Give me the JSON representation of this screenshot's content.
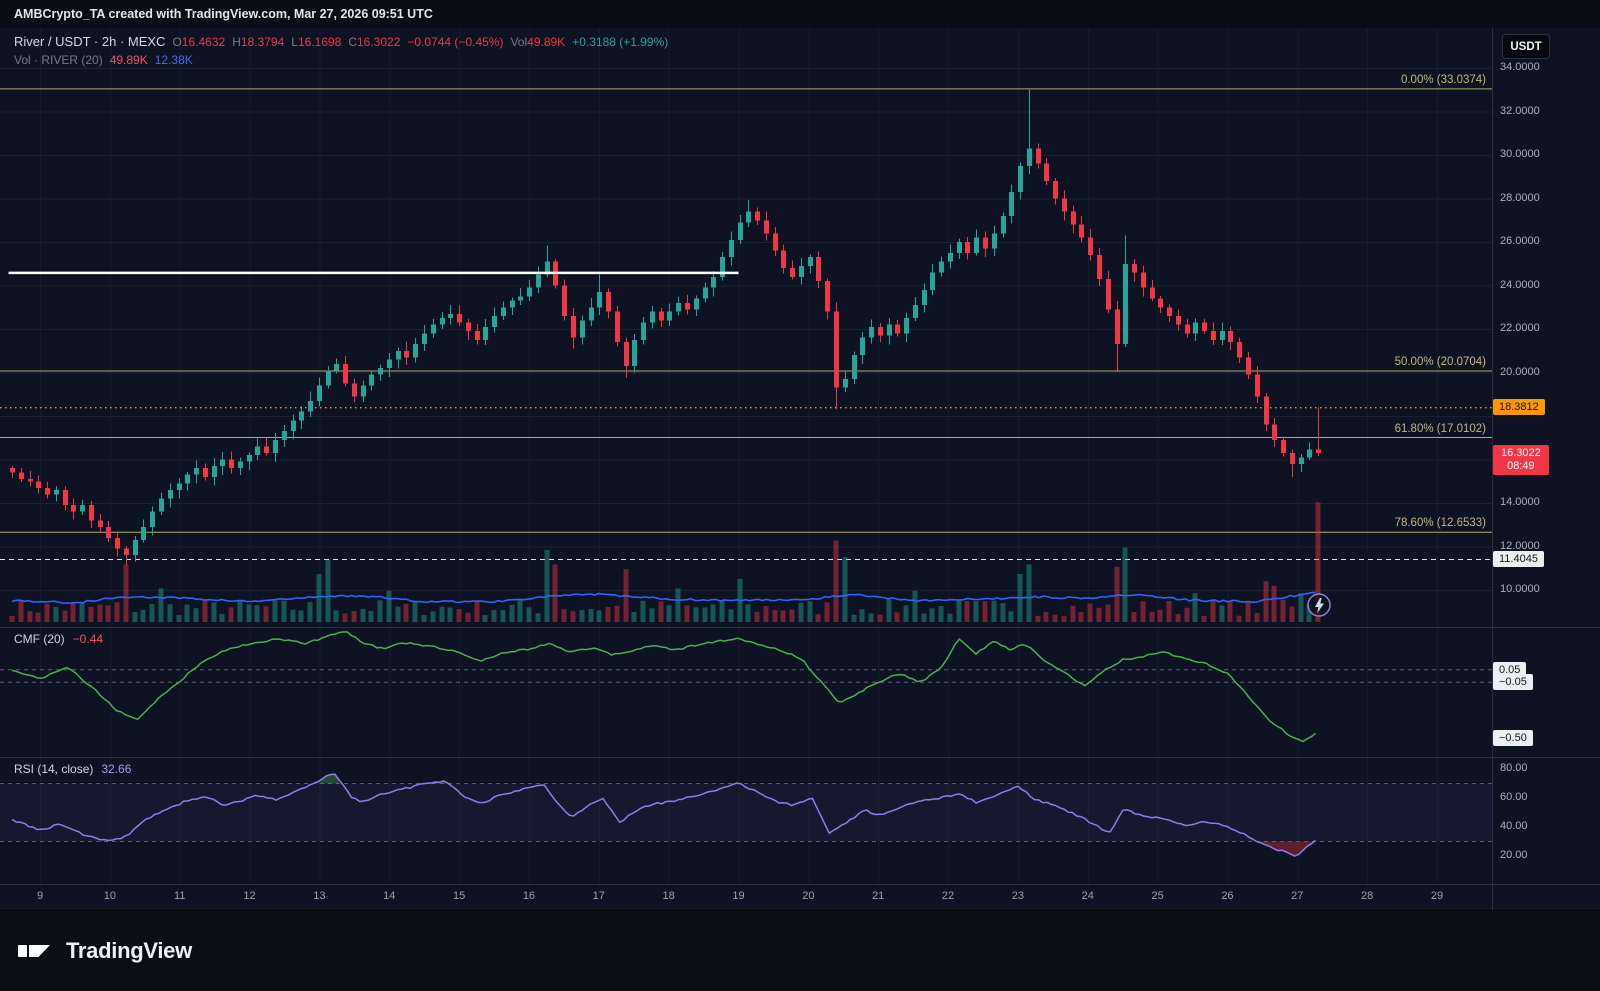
{
  "caption": "AMBCrypto_TA created with TradingView.com, Mar 27, 2026 09:51 UTC",
  "header": {
    "symbol": "River / USDT · 2h · MEXC",
    "o_label": "O",
    "o": "16.4632",
    "h_label": "H",
    "h": "18.3794",
    "l_label": "L",
    "l": "16.1698",
    "c_label": "C",
    "c": "16.3022",
    "change": "−0.0744 (−0.45%)",
    "vol_label": "Vol",
    "vol": "49.89K",
    "vol_change": "+0.3188 (+1.99%)",
    "row2_label": "Vol · RIVER (20)",
    "row2_v1": "49.89K",
    "row2_v2": "12.38K",
    "currency": "USDT"
  },
  "price_labels": {
    "orange": "18.3812",
    "current_price": "16.3022",
    "countdown": "08:49",
    "dashed": "11.4045"
  },
  "footer": {
    "brand": "TradingView"
  },
  "colors": {
    "up": "#26a69a",
    "down": "#f23645",
    "fib": "#b9a96e",
    "orange": "#ff9800",
    "white_line": "#ffffff",
    "vol_ma": "#2f62ff",
    "cmf": "#4caf50",
    "rsi": "#8f7ee8"
  },
  "chart_data": {
    "type": "candlestick",
    "title": "River / USDT · 2h · MEXC",
    "x_axis_days": [
      "9",
      "10",
      "11",
      "12",
      "13",
      "14",
      "15",
      "16",
      "17",
      "18",
      "19",
      "20",
      "21",
      "22",
      "23",
      "24",
      "25",
      "26",
      "27",
      "28",
      "29"
    ],
    "price_axis_ticks": [
      {
        "label": "34.0000",
        "p": 34
      },
      {
        "label": "32.0000",
        "p": 32
      },
      {
        "label": "30.0000",
        "p": 30
      },
      {
        "label": "28.0000",
        "p": 28
      },
      {
        "label": "26.0000",
        "p": 26
      },
      {
        "label": "24.0000",
        "p": 24
      },
      {
        "label": "22.0000",
        "p": 22
      },
      {
        "label": "20.0000",
        "p": 20
      },
      {
        "label": "14.0000",
        "p": 14
      },
      {
        "label": "12.0000",
        "p": 12
      },
      {
        "label": "10.0000",
        "p": 10
      }
    ],
    "fib_levels": [
      {
        "label": "0.00% (33.0374)",
        "price": 33.0374
      },
      {
        "label": "50.00% (20.0704)",
        "price": 20.0704
      },
      {
        "label": "61.80% (17.0102)",
        "price": 17.0102
      },
      {
        "label": "78.60% (12.6533)",
        "price": 12.6533
      }
    ],
    "level_lines": {
      "white_solid": {
        "price": 24.58,
        "start_day": 8.55,
        "end_day": 19.0
      },
      "orange_dotted": 18.3812,
      "white_dashed": 11.4045,
      "current_price": 16.3022
    },
    "candles": {
      "interval": "2h",
      "start_day": 8.6,
      "end_day": 27.3,
      "first_open": 15.6,
      "closes": [
        15.4,
        15.1,
        15.0,
        14.7,
        14.4,
        14.6,
        13.9,
        13.6,
        13.9,
        13.2,
        12.9,
        12.4,
        11.9,
        11.6,
        12.3,
        12.9,
        13.6,
        14.2,
        14.6,
        14.9,
        15.3,
        15.6,
        15.2,
        15.7,
        16.0,
        15.6,
        15.9,
        16.2,
        16.6,
        16.3,
        16.9,
        17.3,
        17.8,
        18.2,
        18.7,
        19.4,
        20.1,
        20.4,
        19.5,
        18.9,
        19.4,
        19.9,
        20.2,
        20.6,
        21.0,
        20.7,
        21.3,
        21.8,
        22.2,
        22.5,
        22.7,
        22.3,
        21.9,
        21.5,
        22.1,
        22.6,
        23.0,
        23.3,
        23.5,
        23.9,
        24.5,
        25.1,
        24.0,
        22.6,
        21.6,
        22.4,
        23.0,
        23.7,
        22.8,
        21.4,
        20.3,
        21.5,
        22.3,
        22.8,
        22.4,
        22.8,
        23.2,
        22.9,
        23.4,
        23.9,
        24.4,
        25.3,
        26.1,
        26.9,
        27.4,
        27.0,
        26.4,
        25.6,
        24.8,
        24.4,
        24.9,
        25.3,
        24.2,
        22.8,
        19.3,
        19.7,
        20.8,
        21.6,
        22.1,
        21.7,
        22.2,
        21.8,
        22.5,
        23.1,
        23.8,
        24.6,
        25.1,
        25.5,
        26.0,
        25.5,
        26.2,
        25.7,
        26.4,
        27.2,
        28.3,
        29.5,
        30.3,
        29.6,
        28.8,
        28.0,
        27.4,
        26.8,
        26.2,
        25.4,
        24.3,
        22.9,
        21.3,
        25.0,
        24.6,
        23.9,
        23.4,
        23.0,
        22.6,
        22.2,
        21.8,
        22.3,
        21.9,
        21.5,
        21.9,
        21.4,
        20.7,
        19.9,
        18.9,
        17.6,
        16.9,
        16.3,
        15.8,
        16.1,
        16.46,
        16.3022
      ],
      "overrides": {
        "13": {
          "l": 11.15
        },
        "37": {
          "h": 20.65
        },
        "61": {
          "h": 25.85
        },
        "64": {
          "l": 21.1
        },
        "67": {
          "h": 24.5
        },
        "70": {
          "l": 19.78
        },
        "84": {
          "h": 27.92
        },
        "94": {
          "l": 18.3
        },
        "116": {
          "h": 33.0374
        },
        "126": {
          "l": 20.1
        },
        "127": {
          "h": 26.3
        },
        "146": {
          "l": 15.2
        },
        "149": {
          "o": 16.4632,
          "h": 18.3794,
          "l": 16.1698,
          "c": 16.3022
        }
      }
    },
    "volume": {
      "unit": "K",
      "current": "49.89K",
      "ma_current": "12.38K",
      "base_range": [
        2.5,
        9.5
      ],
      "spikes": {
        "13": 24,
        "17": 14,
        "35": 20,
        "36": 26,
        "43": 13,
        "61": 30,
        "62": 24,
        "70": 22,
        "76": 14,
        "83": 18,
        "94": 34,
        "95": 27,
        "103": 13,
        "115": 20,
        "116": 24,
        "126": 23,
        "127": 31,
        "135": 12,
        "143": 17,
        "144": 15,
        "147": 12,
        "149": 49.89
      },
      "ma_points": [
        [
          8.6,
          9
        ],
        [
          9.5,
          8
        ],
        [
          10.2,
          10.5
        ],
        [
          11,
          10
        ],
        [
          12,
          8.5
        ],
        [
          13,
          10.5
        ],
        [
          13.6,
          11
        ],
        [
          14.5,
          8.5
        ],
        [
          15.5,
          8.5
        ],
        [
          16.4,
          11
        ],
        [
          17,
          11.5
        ],
        [
          18,
          9.5
        ],
        [
          19,
          9
        ],
        [
          20,
          9.5
        ],
        [
          20.6,
          11.5
        ],
        [
          21.5,
          9
        ],
        [
          22.5,
          9.5
        ],
        [
          23.2,
          10.5
        ],
        [
          24,
          10
        ],
        [
          24.6,
          11.5
        ],
        [
          25.5,
          9
        ],
        [
          26.4,
          8.5
        ],
        [
          27.3,
          12.4
        ]
      ]
    },
    "cmf": {
      "title": "CMF (20)",
      "value": "−0.44",
      "guides": [
        0.05,
        -0.05
      ],
      "axis_labels": [
        {
          "label": "0.05",
          "v": 0.05
        },
        {
          "label": "−0.05",
          "v": -0.05
        },
        {
          "label": "−0.50",
          "v": -0.5
        }
      ],
      "points": [
        [
          8.6,
          0.04
        ],
        [
          9,
          -0.02
        ],
        [
          9.4,
          0.07
        ],
        [
          9.8,
          -0.12
        ],
        [
          10.1,
          -0.28
        ],
        [
          10.4,
          -0.35
        ],
        [
          10.7,
          -0.18
        ],
        [
          11,
          -0.04
        ],
        [
          11.3,
          0.1
        ],
        [
          11.6,
          0.2
        ],
        [
          12,
          0.26
        ],
        [
          12.4,
          0.3
        ],
        [
          12.8,
          0.26
        ],
        [
          13.1,
          0.32
        ],
        [
          13.4,
          0.36
        ],
        [
          13.6,
          0.27
        ],
        [
          13.9,
          0.22
        ],
        [
          14.2,
          0.27
        ],
        [
          14.6,
          0.24
        ],
        [
          15,
          0.19
        ],
        [
          15.3,
          0.12
        ],
        [
          15.6,
          0.18
        ],
        [
          16,
          0.22
        ],
        [
          16.3,
          0.26
        ],
        [
          16.6,
          0.19
        ],
        [
          16.9,
          0.23
        ],
        [
          17.2,
          0.17
        ],
        [
          17.5,
          0.21
        ],
        [
          17.8,
          0.25
        ],
        [
          18.1,
          0.21
        ],
        [
          18.4,
          0.25
        ],
        [
          18.7,
          0.28
        ],
        [
          19,
          0.3
        ],
        [
          19.3,
          0.25
        ],
        [
          19.6,
          0.21
        ],
        [
          19.9,
          0.14
        ],
        [
          20.2,
          -0.06
        ],
        [
          20.45,
          -0.22
        ],
        [
          20.7,
          -0.14
        ],
        [
          21,
          -0.05
        ],
        [
          21.3,
          0.02
        ],
        [
          21.6,
          -0.05
        ],
        [
          21.9,
          0.06
        ],
        [
          22.15,
          0.3
        ],
        [
          22.4,
          0.18
        ],
        [
          22.65,
          0.28
        ],
        [
          22.9,
          0.21
        ],
        [
          23.1,
          0.26
        ],
        [
          23.4,
          0.12
        ],
        [
          23.7,
          0.02
        ],
        [
          23.95,
          -0.08
        ],
        [
          24.2,
          0.03
        ],
        [
          24.5,
          0.13
        ],
        [
          24.8,
          0.16
        ],
        [
          25.1,
          0.19
        ],
        [
          25.4,
          0.14
        ],
        [
          25.7,
          0.1
        ],
        [
          26,
          0.02
        ],
        [
          26.3,
          -0.16
        ],
        [
          26.6,
          -0.36
        ],
        [
          26.9,
          -0.48
        ],
        [
          27.1,
          -0.53
        ],
        [
          27.3,
          -0.44
        ]
      ]
    },
    "rsi": {
      "title": "RSI (14, close)",
      "value": "32.66",
      "bands": [
        70,
        30
      ],
      "axis_labels": [
        {
          "label": "80.00",
          "v": 80
        },
        {
          "label": "60.00",
          "v": 60
        },
        {
          "label": "40.00",
          "v": 40
        },
        {
          "label": "20.00",
          "v": 20
        }
      ],
      "points": [
        [
          8.6,
          45
        ],
        [
          9,
          38
        ],
        [
          9.3,
          42
        ],
        [
          9.6,
          35
        ],
        [
          10,
          30
        ],
        [
          10.25,
          34
        ],
        [
          10.5,
          45
        ],
        [
          10.8,
          52
        ],
        [
          11.1,
          58
        ],
        [
          11.4,
          61
        ],
        [
          11.6,
          55
        ],
        [
          11.9,
          58
        ],
        [
          12.1,
          62
        ],
        [
          12.4,
          59
        ],
        [
          12.7,
          65
        ],
        [
          13,
          72
        ],
        [
          13.2,
          78
        ],
        [
          13.45,
          61
        ],
        [
          13.6,
          57
        ],
        [
          13.9,
          63
        ],
        [
          14.2,
          66
        ],
        [
          14.5,
          70
        ],
        [
          14.8,
          72
        ],
        [
          15.05,
          62
        ],
        [
          15.3,
          56
        ],
        [
          15.6,
          62
        ],
        [
          15.9,
          66
        ],
        [
          16.2,
          70
        ],
        [
          16.45,
          54
        ],
        [
          16.6,
          47
        ],
        [
          16.9,
          56
        ],
        [
          17.05,
          60
        ],
        [
          17.3,
          43
        ],
        [
          17.55,
          52
        ],
        [
          17.8,
          56
        ],
        [
          18.1,
          58
        ],
        [
          18.4,
          62
        ],
        [
          18.7,
          66
        ],
        [
          19,
          70
        ],
        [
          19.25,
          65
        ],
        [
          19.5,
          58
        ],
        [
          19.8,
          55
        ],
        [
          20.05,
          60
        ],
        [
          20.3,
          36
        ],
        [
          20.55,
          43
        ],
        [
          20.8,
          52
        ],
        [
          21,
          48
        ],
        [
          21.3,
          53
        ],
        [
          21.6,
          58
        ],
        [
          21.9,
          60
        ],
        [
          22.15,
          63
        ],
        [
          22.4,
          57
        ],
        [
          22.7,
          62
        ],
        [
          23,
          68
        ],
        [
          23.25,
          59
        ],
        [
          23.5,
          55
        ],
        [
          23.8,
          49
        ],
        [
          24.1,
          42
        ],
        [
          24.3,
          35
        ],
        [
          24.5,
          52
        ],
        [
          24.8,
          48
        ],
        [
          25.1,
          45
        ],
        [
          25.4,
          41
        ],
        [
          25.7,
          44
        ],
        [
          26,
          40
        ],
        [
          26.25,
          35
        ],
        [
          26.5,
          28
        ],
        [
          26.8,
          23
        ],
        [
          27,
          20
        ],
        [
          27.15,
          27
        ],
        [
          27.3,
          32.66
        ]
      ]
    }
  }
}
